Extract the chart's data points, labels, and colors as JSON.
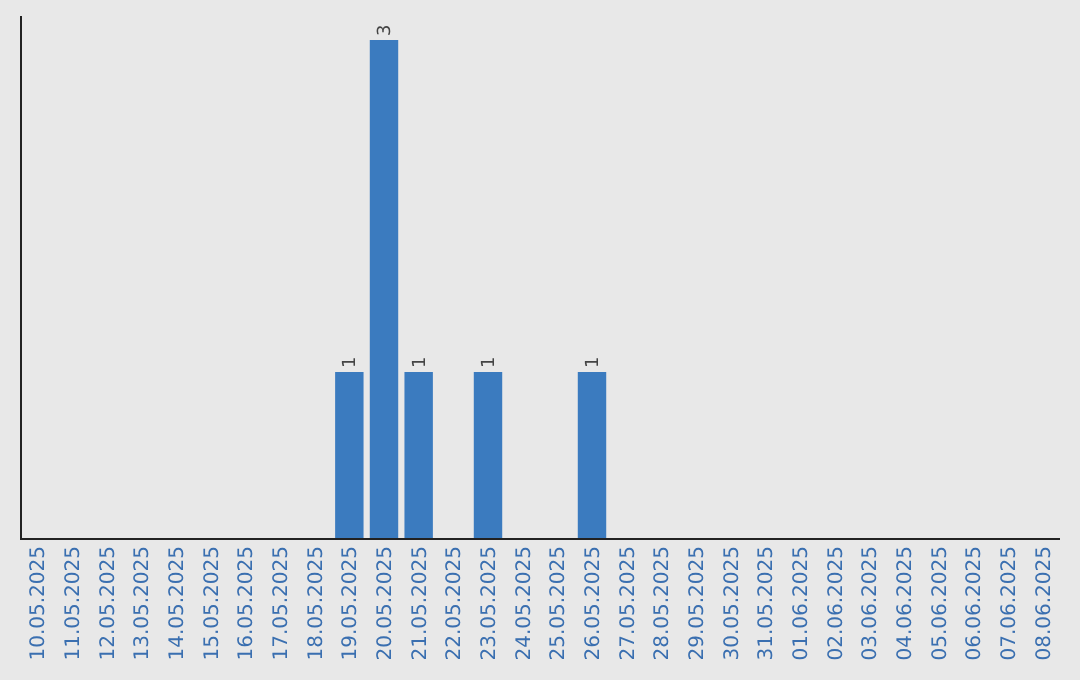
{
  "chart_data": {
    "type": "bar",
    "categories": [
      "10.05.2025",
      "11.05.2025",
      "12.05.2025",
      "13.05.2025",
      "14.05.2025",
      "15.05.2025",
      "16.05.2025",
      "17.05.2025",
      "18.05.2025",
      "19.05.2025",
      "20.05.2025",
      "21.05.2025",
      "22.05.2025",
      "23.05.2025",
      "24.05.2025",
      "25.05.2025",
      "26.05.2025",
      "27.05.2025",
      "28.05.2025",
      "29.05.2025",
      "30.05.2025",
      "31.05.2025",
      "01.06.2025",
      "02.06.2025",
      "03.06.2025",
      "04.06.2025",
      "05.06.2025",
      "06.06.2025",
      "07.06.2025",
      "08.06.2025"
    ],
    "values": [
      0,
      0,
      0,
      0,
      0,
      0,
      0,
      0,
      0,
      1,
      3,
      1,
      0,
      1,
      0,
      0,
      1,
      0,
      0,
      0,
      0,
      0,
      0,
      0,
      0,
      0,
      0,
      0,
      0,
      0
    ],
    "value_labels": [
      null,
      null,
      null,
      null,
      null,
      null,
      null,
      null,
      null,
      "1",
      "3",
      "1",
      null,
      "1",
      null,
      null,
      "1",
      null,
      null,
      null,
      null,
      null,
      null,
      null,
      null,
      null,
      null,
      null,
      null,
      null
    ],
    "color": "#3b7bbf"
  }
}
